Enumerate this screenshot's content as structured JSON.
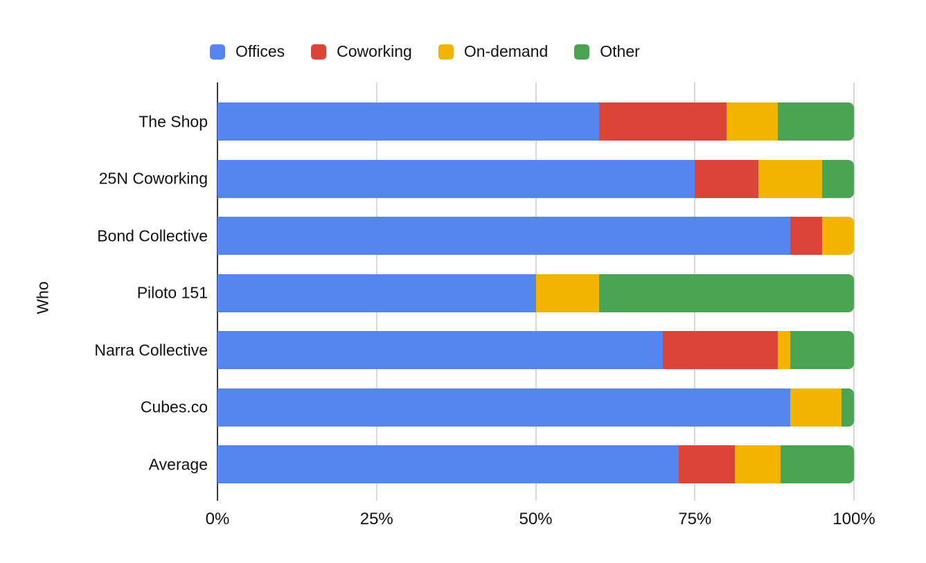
{
  "chart_data": {
    "type": "bar",
    "orientation": "horizontal",
    "stacked": true,
    "title": "",
    "xlabel": "",
    "ylabel": "Who",
    "xlim": [
      0,
      100
    ],
    "x_tick_labels": [
      "0%",
      "25%",
      "50%",
      "75%",
      "100%"
    ],
    "grid": true,
    "legend_position": "top",
    "categories": [
      "The Shop",
      "25N Coworking",
      "Bond Collective",
      "Piloto 151",
      "Narra Collective",
      "Cubes.co",
      "Average"
    ],
    "series": [
      {
        "name": "Offices",
        "color": "#5585F0",
        "values": [
          60,
          75,
          90,
          50,
          70,
          90,
          72.5
        ]
      },
      {
        "name": "Coworking",
        "color": "#DB4437",
        "values": [
          20,
          10,
          5,
          0,
          18,
          0,
          8.8
        ]
      },
      {
        "name": "On-demand",
        "color": "#F3B400",
        "values": [
          8,
          10,
          5,
          10,
          2,
          8,
          7.2
        ]
      },
      {
        "name": "Other",
        "color": "#4AA552",
        "values": [
          12,
          5,
          0,
          40,
          10,
          2,
          11.5
        ]
      }
    ]
  },
  "colors": {
    "background": "#ffffff",
    "axis_line": "#3c3c3c",
    "gridline": "#d9d9d9",
    "text": "#111111"
  }
}
